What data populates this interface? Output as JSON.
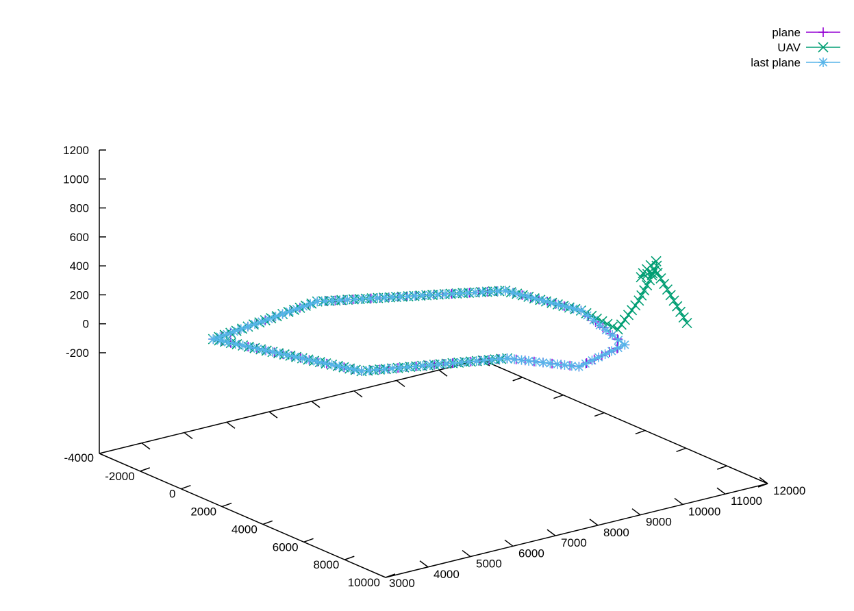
{
  "chart_data": {
    "type": "scatter",
    "projection": "3d",
    "title": "",
    "xlabel": "",
    "ylabel": "",
    "zlabel": "",
    "legend_position": "top-right",
    "grid": false,
    "xlim": [
      -4000,
      10000
    ],
    "ylim": [
      3000,
      12000
    ],
    "zlim": [
      -200,
      1200
    ],
    "x_ticks": [
      -2000,
      0,
      2000,
      4000,
      6000,
      8000,
      10000
    ],
    "y_ticks": [
      4000,
      5000,
      6000,
      7000,
      8000,
      9000,
      10000,
      11000,
      12000
    ],
    "corner_labels": [
      "-4000",
      "3000"
    ],
    "z_ticks": [
      -200,
      0,
      200,
      400,
      600,
      800,
      1000,
      1200
    ],
    "series": [
      {
        "name": "plane",
        "color": "#9400d3",
        "marker": "plus",
        "points": [
          [
            5710,
            7930,
            0
          ],
          [
            4050,
            5300,
            0
          ],
          [
            -880,
            4180,
            0
          ],
          [
            -1750,
            7050,
            0
          ],
          [
            800,
            10250,
            0
          ],
          [
            3570,
            10700,
            0
          ],
          [
            6810,
            10170,
            0
          ],
          [
            7580,
            8720,
            0
          ],
          [
            5710,
            7930,
            0
          ]
        ]
      },
      {
        "name": "UAV",
        "color": "#009e73",
        "marker": "x",
        "points": [
          [
            5710,
            7930,
            0
          ],
          [
            4050,
            5300,
            0
          ],
          [
            -880,
            4180,
            0
          ],
          [
            -1750,
            7050,
            0
          ],
          [
            800,
            10250,
            0
          ],
          [
            3570,
            10700,
            0
          ],
          [
            5580,
            10600,
            0
          ],
          [
            5650,
            11060,
            170
          ],
          [
            5720,
            11280,
            300
          ],
          [
            5650,
            11480,
            380
          ],
          [
            5520,
            11530,
            400
          ],
          [
            5400,
            11460,
            370
          ],
          [
            5420,
            11270,
            330
          ],
          [
            5570,
            11150,
            320
          ],
          [
            5720,
            11230,
            345
          ],
          [
            5860,
            11400,
            350
          ],
          [
            6340,
            11860,
            0
          ]
        ]
      },
      {
        "name": "last plane",
        "color": "#56b4e9",
        "marker": "star",
        "points": [
          [
            5710,
            7930,
            0
          ],
          [
            4050,
            5300,
            0
          ],
          [
            -880,
            4180,
            0
          ],
          [
            -1750,
            7050,
            0
          ],
          [
            800,
            10250,
            0
          ],
          [
            3570,
            10700,
            0
          ],
          [
            6810,
            10170,
            0
          ],
          [
            7580,
            8720,
            0
          ],
          [
            5710,
            7930,
            0
          ]
        ]
      }
    ]
  }
}
